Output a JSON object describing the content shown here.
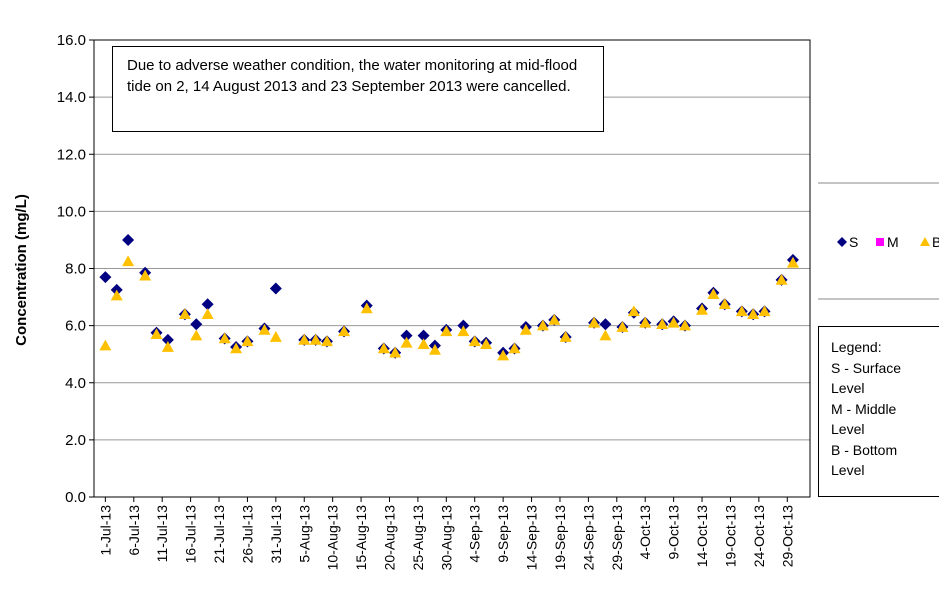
{
  "chart_data": {
    "type": "scatter",
    "y_label": "Concentration (mg/L)",
    "annotation": "Due to adverse weather condition, the water monitoring at mid-flood tide on 2, 14 August 2013 and 23 September 2013 were cancelled.",
    "legend_note": [
      "Legend:",
      "S - Surface Level",
      "M - Middle Level",
      "B - Bottom Level"
    ],
    "ylim": [
      0,
      16
    ],
    "yticks": [
      {
        "value": 0,
        "label": "0.0"
      },
      {
        "value": 2,
        "label": "2.0"
      },
      {
        "value": 4,
        "label": "4.0"
      },
      {
        "value": 6,
        "label": "6.0"
      },
      {
        "value": 8,
        "label": "8.0"
      },
      {
        "value": 10,
        "label": "10.0"
      },
      {
        "value": 12,
        "label": "12.0"
      },
      {
        "value": 14,
        "label": "14.0"
      },
      {
        "value": 16,
        "label": "16.0"
      }
    ],
    "xlim": [
      "2013-06-29",
      "2013-11-02"
    ],
    "xticks": [
      {
        "value": "2013-07-01",
        "label": "1-Jul-13"
      },
      {
        "value": "2013-07-06",
        "label": "6-Jul-13"
      },
      {
        "value": "2013-07-11",
        "label": "11-Jul-13"
      },
      {
        "value": "2013-07-16",
        "label": "16-Jul-13"
      },
      {
        "value": "2013-07-21",
        "label": "21-Jul-13"
      },
      {
        "value": "2013-07-26",
        "label": "26-Jul-13"
      },
      {
        "value": "2013-07-31",
        "label": "31-Jul-13"
      },
      {
        "value": "2013-08-05",
        "label": "5-Aug-13"
      },
      {
        "value": "2013-08-10",
        "label": "10-Aug-13"
      },
      {
        "value": "2013-08-15",
        "label": "15-Aug-13"
      },
      {
        "value": "2013-08-20",
        "label": "20-Aug-13"
      },
      {
        "value": "2013-08-25",
        "label": "25-Aug-13"
      },
      {
        "value": "2013-08-30",
        "label": "30-Aug-13"
      },
      {
        "value": "2013-09-04",
        "label": "4-Sep-13"
      },
      {
        "value": "2013-09-09",
        "label": "9-Sep-13"
      },
      {
        "value": "2013-09-14",
        "label": "14-Sep-13"
      },
      {
        "value": "2013-09-19",
        "label": "19-Sep-13"
      },
      {
        "value": "2013-09-24",
        "label": "24-Sep-13"
      },
      {
        "value": "2013-09-29",
        "label": "29-Sep-13"
      },
      {
        "value": "2013-10-04",
        "label": "4-Oct-13"
      },
      {
        "value": "2013-10-09",
        "label": "9-Oct-13"
      },
      {
        "value": "2013-10-14",
        "label": "14-Oct-13"
      },
      {
        "value": "2013-10-19",
        "label": "19-Oct-13"
      },
      {
        "value": "2013-10-24",
        "label": "24-Oct-13"
      },
      {
        "value": "2013-10-29",
        "label": "29-Oct-13"
      }
    ],
    "grid": true,
    "x": [
      "2013-07-01",
      "2013-07-03",
      "2013-07-05",
      "2013-07-08",
      "2013-07-10",
      "2013-07-12",
      "2013-07-15",
      "2013-07-17",
      "2013-07-19",
      "2013-07-22",
      "2013-07-24",
      "2013-07-26",
      "2013-07-29",
      "2013-07-31",
      "2013-08-05",
      "2013-08-07",
      "2013-08-09",
      "2013-08-12",
      "2013-08-16",
      "2013-08-19",
      "2013-08-21",
      "2013-08-23",
      "2013-08-26",
      "2013-08-28",
      "2013-08-30",
      "2013-09-02",
      "2013-09-04",
      "2013-09-06",
      "2013-09-09",
      "2013-09-11",
      "2013-09-13",
      "2013-09-16",
      "2013-09-18",
      "2013-09-20",
      "2013-09-25",
      "2013-09-27",
      "2013-09-30",
      "2013-10-02",
      "2013-10-04",
      "2013-10-07",
      "2013-10-09",
      "2013-10-11",
      "2013-10-14",
      "2013-10-16",
      "2013-10-18",
      "2013-10-21",
      "2013-10-23",
      "2013-10-25",
      "2013-10-28",
      "2013-10-30"
    ],
    "series": [
      {
        "name": "S",
        "color": "#000080",
        "marker": "diamond",
        "values": [
          7.7,
          7.25,
          9.0,
          7.85,
          5.75,
          5.5,
          6.4,
          6.05,
          6.75,
          5.55,
          5.25,
          5.45,
          5.9,
          7.3,
          5.5,
          5.5,
          5.45,
          5.8,
          6.7,
          5.2,
          5.05,
          5.65,
          5.65,
          5.3,
          5.85,
          6.0,
          5.45,
          5.4,
          5.05,
          5.2,
          5.95,
          6.0,
          6.2,
          5.6,
          6.1,
          6.05,
          5.95,
          6.45,
          6.1,
          6.05,
          6.15,
          6.0,
          6.6,
          7.15,
          6.75,
          6.5,
          6.4,
          6.5,
          7.6,
          8.3
        ]
      },
      {
        "name": "M",
        "color": "#ff00ff",
        "marker": "square",
        "values": [
          null,
          null,
          null,
          null,
          null,
          null,
          null,
          null,
          null,
          null,
          null,
          null,
          null,
          null,
          null,
          null,
          null,
          null,
          null,
          null,
          null,
          null,
          null,
          null,
          null,
          null,
          null,
          null,
          null,
          null,
          null,
          null,
          null,
          null,
          null,
          null,
          null,
          null,
          null,
          null,
          null,
          null,
          null,
          null,
          null,
          null,
          null,
          null,
          null,
          null
        ]
      },
      {
        "name": "B",
        "color": "#ffc000",
        "marker": "triangle",
        "values": [
          5.3,
          7.05,
          8.25,
          7.75,
          5.7,
          5.25,
          6.4,
          5.65,
          6.4,
          5.55,
          5.2,
          5.45,
          5.85,
          5.6,
          5.5,
          5.5,
          5.45,
          5.8,
          6.6,
          5.2,
          5.05,
          5.4,
          5.35,
          5.15,
          5.8,
          5.8,
          5.45,
          5.35,
          4.95,
          5.2,
          5.85,
          6.0,
          6.2,
          5.6,
          6.1,
          5.65,
          5.95,
          6.5,
          6.1,
          6.05,
          6.1,
          6.0,
          6.55,
          7.1,
          6.75,
          6.5,
          6.4,
          6.5,
          7.6,
          8.2
        ]
      }
    ]
  }
}
